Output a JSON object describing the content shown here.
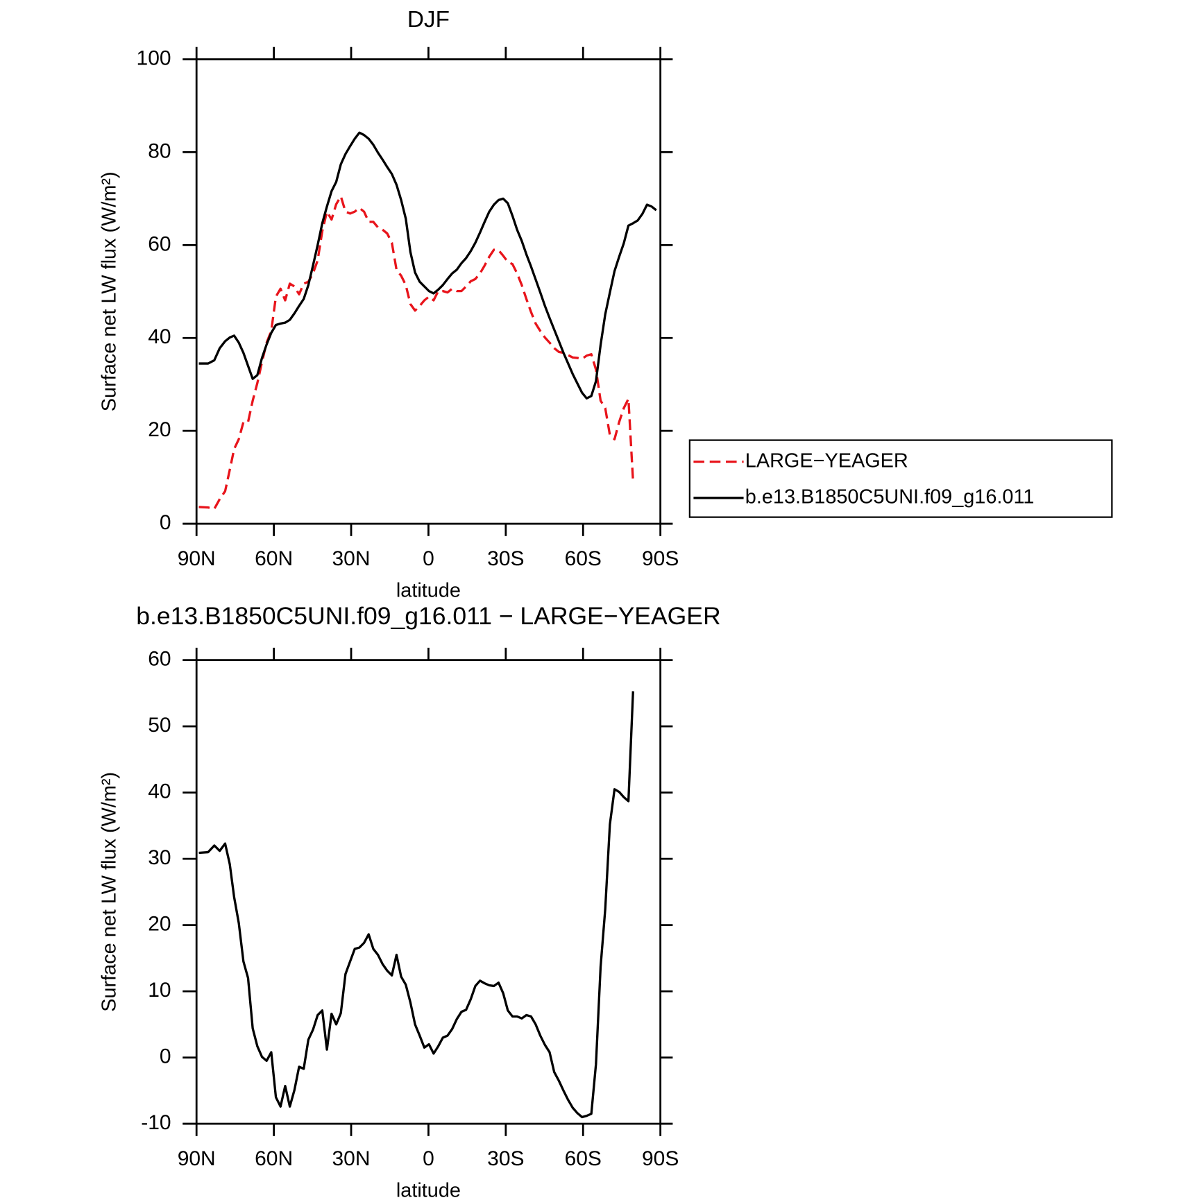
{
  "chart_data": [
    {
      "type": "line",
      "title": "DJF",
      "xlabel": "latitude",
      "ylabel": "Surface net LW flux (W/m²)",
      "xlim": [
        90,
        -90
      ],
      "xticks": [
        {
          "value": 90,
          "label": "90N"
        },
        {
          "value": 60,
          "label": "60N"
        },
        {
          "value": 30,
          "label": "30N"
        },
        0,
        {
          "value": -30,
          "label": "30S"
        },
        {
          "value": -60,
          "label": "60S"
        },
        {
          "value": -90,
          "label": "90S"
        }
      ],
      "ylim": [
        0,
        100
      ],
      "yticks": [
        0,
        20,
        40,
        60,
        80,
        100
      ],
      "legend": "right",
      "x": [
        89.1,
        85.5,
        83.1,
        81.0,
        78.9,
        77.1,
        75.4,
        73.6,
        71.8,
        70.0,
        68.2,
        66.4,
        64.6,
        62.8,
        61.0,
        59.2,
        57.4,
        55.6,
        53.8,
        52.0,
        50.2,
        48.4,
        46.6,
        44.8,
        43.0,
        41.2,
        39.4,
        37.6,
        35.8,
        34.0,
        32.2,
        30.4,
        28.6,
        26.8,
        25.0,
        23.2,
        21.4,
        19.6,
        17.8,
        16.0,
        14.2,
        12.4,
        10.6,
        8.8,
        7.0,
        5.2,
        3.4,
        1.6,
        -0.2,
        -2.0,
        -3.8,
        -5.6,
        -7.4,
        -9.2,
        -11.0,
        -12.8,
        -14.6,
        -16.4,
        -18.2,
        -20.0,
        -21.8,
        -23.6,
        -25.4,
        -27.2,
        -29.0,
        -30.8,
        -32.6,
        -34.4,
        -36.2,
        -38.0,
        -39.8,
        -41.6,
        -43.4,
        -45.2,
        -47.0,
        -48.8,
        -50.6,
        -52.4,
        -54.2,
        -56.0,
        -57.8,
        -59.6,
        -61.4,
        -63.2,
        -65.0,
        -66.8,
        -68.6,
        -70.4,
        -72.2,
        -74.0,
        -75.8,
        -77.6,
        -79.4,
        -81.2,
        -83.0,
        -84.8,
        -86.6,
        -88.4
      ],
      "series": [
        {
          "name": "LARGE−YEAGER",
          "color": "#e8141b",
          "dashed": true,
          "values": [
            3.6,
            3.5,
            3.2,
            5.3,
            7.0,
            11.6,
            16.1,
            18.2,
            21.9,
            21.9,
            26.5,
            30.3,
            34.8,
            39.0,
            41.5,
            48.9,
            50.6,
            48.1,
            51.7,
            51.1,
            49.4,
            51.7,
            52.1,
            53.9,
            56.7,
            63.0,
            67.2,
            65.5,
            68.8,
            70.5,
            67.2,
            66.8,
            67.2,
            68.0,
            67.2,
            65.0,
            65.0,
            63.8,
            63.3,
            62.5,
            60.5,
            54.7,
            53.4,
            51.4,
            47.3,
            45.9,
            46.9,
            48.1,
            48.9,
            48.1,
            50.1,
            50.1,
            49.8,
            50.6,
            50.1,
            50.1,
            51.1,
            52.2,
            52.7,
            53.9,
            55.6,
            57.5,
            59.0,
            58.9,
            57.7,
            56.4,
            55.9,
            53.9,
            51.4,
            48.4,
            45.6,
            43.1,
            41.5,
            40.1,
            39.0,
            37.8,
            37.0,
            36.8,
            36.3,
            35.8,
            35.7,
            35.5,
            36.2,
            36.5,
            33.2,
            26.5,
            24.9,
            19.1,
            18.2,
            21.9,
            24.9,
            26.9,
            9.1,
            null,
            null,
            null,
            null,
            null
          ]
        },
        {
          "name": "b.e13.B1850C5UNI.f09_g16.011",
          "color": "#000000",
          "dashed": false,
          "values": [
            34.5,
            34.5,
            35.2,
            37.8,
            39.3,
            40.1,
            40.5,
            39.0,
            36.8,
            34.0,
            31.2,
            32.0,
            35.7,
            38.6,
            41.1,
            42.8,
            43.1,
            43.3,
            43.9,
            45.3,
            46.9,
            48.4,
            51.4,
            55.6,
            60.0,
            64.7,
            68.3,
            71.6,
            73.6,
            77.4,
            79.6,
            81.3,
            82.9,
            84.2,
            83.7,
            82.9,
            81.6,
            79.9,
            78.4,
            76.8,
            75.3,
            73.0,
            69.7,
            65.7,
            58.5,
            54.1,
            52.1,
            51.1,
            50.1,
            49.6,
            50.4,
            51.4,
            52.7,
            53.9,
            54.7,
            56.1,
            57.2,
            58.7,
            60.5,
            62.7,
            65.0,
            67.2,
            68.7,
            69.7,
            70.0,
            69.0,
            66.3,
            63.3,
            60.9,
            58.0,
            55.4,
            52.6,
            49.8,
            46.9,
            44.3,
            41.8,
            39.3,
            36.8,
            34.5,
            32.2,
            30.2,
            28.2,
            27.0,
            27.5,
            30.7,
            38.5,
            45.1,
            49.8,
            54.4,
            57.5,
            60.4,
            64.2,
            64.7,
            65.3,
            66.7,
            68.7,
            68.3,
            67.5
          ]
        }
      ]
    },
    {
      "type": "line",
      "title": "b.e13.B1850C5UNI.f09_g16.011 − LARGE−YEAGER",
      "xlabel": "latitude",
      "ylabel": "Surface net LW flux (W/m²)",
      "xlim": [
        90,
        -90
      ],
      "xticks": [
        {
          "value": 90,
          "label": "90N"
        },
        {
          "value": 60,
          "label": "60N"
        },
        {
          "value": 30,
          "label": "30N"
        },
        0,
        {
          "value": -30,
          "label": "30S"
        },
        {
          "value": -60,
          "label": "60S"
        },
        {
          "value": -90,
          "label": "90S"
        }
      ],
      "ylim": [
        -10,
        60
      ],
      "yticks": [
        -10,
        0,
        10,
        20,
        30,
        40,
        50,
        60
      ],
      "color": "#000000",
      "x": [
        89.1,
        85.5,
        83.1,
        81.0,
        78.9,
        77.1,
        75.4,
        73.6,
        71.8,
        70.0,
        68.2,
        66.4,
        64.6,
        62.8,
        61.0,
        59.2,
        57.4,
        55.6,
        53.8,
        52.0,
        50.2,
        48.4,
        46.6,
        44.8,
        43.0,
        41.2,
        39.4,
        37.6,
        35.8,
        34.0,
        32.2,
        30.4,
        28.6,
        26.8,
        25.0,
        23.2,
        21.4,
        19.6,
        17.8,
        16.0,
        14.2,
        12.4,
        10.6,
        8.8,
        7.0,
        5.2,
        3.4,
        1.6,
        -0.2,
        -2.0,
        -3.8,
        -5.6,
        -7.4,
        -9.2,
        -11.0,
        -12.8,
        -14.6,
        -16.4,
        -18.2,
        -20.0,
        -21.8,
        -23.6,
        -25.4,
        -27.2,
        -29.0,
        -30.8,
        -32.6,
        -34.4,
        -36.2,
        -38.0,
        -39.8,
        -41.6,
        -43.4,
        -45.2,
        -47.0,
        -48.8,
        -50.6,
        -52.4,
        -54.2,
        -56.0,
        -57.8,
        -59.6,
        -61.4,
        -63.2,
        -65.0,
        -66.8,
        -68.6,
        -70.4,
        -72.2,
        -74.0,
        -75.8,
        -77.6,
        -79.4,
        -81.2,
        -83.0,
        -84.8,
        -86.6,
        -88.4
      ],
      "values": [
        30.9,
        31.0,
        32.0,
        31.2,
        32.3,
        29.2,
        24.2,
        20.3,
        14.5,
        12.0,
        4.4,
        1.7,
        0.1,
        -0.5,
        0.8,
        -6.0,
        -7.4,
        -4.3,
        -7.4,
        -4.9,
        -1.4,
        -1.7,
        2.7,
        4.2,
        6.4,
        7.1,
        1.2,
        6.6,
        5.0,
        6.7,
        12.6,
        14.5,
        16.4,
        16.6,
        17.3,
        18.6,
        16.4,
        15.5,
        14.1,
        13.1,
        12.4,
        15.5,
        12.2,
        11.0,
        8.3,
        5.0,
        3.3,
        1.5,
        2.0,
        0.6,
        1.7,
        3.0,
        3.3,
        4.3,
        5.8,
        6.9,
        7.2,
        8.8,
        10.8,
        11.6,
        11.2,
        10.9,
        10.8,
        11.3,
        9.7,
        7.1,
        6.2,
        6.2,
        5.9,
        6.4,
        6.2,
        5.0,
        3.3,
        1.9,
        0.8,
        -2.2,
        -3.5,
        -5.0,
        -6.4,
        -7.6,
        -8.4,
        -9.0,
        -8.8,
        -8.5,
        -1.0,
        13.7,
        22.4,
        35.2,
        40.5,
        40.1,
        39.3,
        38.7,
        55.3,
        null,
        null,
        null,
        null,
        null
      ]
    }
  ]
}
